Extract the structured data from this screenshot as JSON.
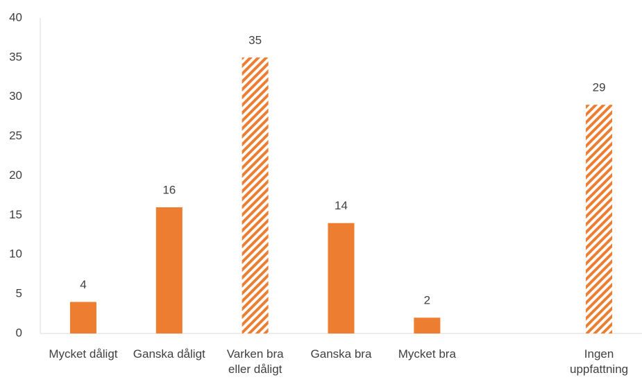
{
  "chart_data": {
    "type": "bar",
    "categories": [
      "Mycket dåligt",
      "Ganska dåligt",
      "Varken bra eller dåligt",
      "Ganska bra",
      "Mycket bra",
      null,
      "Ingen uppfattning"
    ],
    "values": [
      4,
      16,
      35,
      14,
      2,
      null,
      29
    ],
    "bar_styles": [
      "solid",
      "solid",
      "hatched",
      "solid",
      "solid",
      null,
      "hatched"
    ],
    "color": "#ed7d31",
    "ylim": [
      0,
      40
    ],
    "yticks": [
      0,
      5,
      10,
      15,
      20,
      25,
      30,
      35,
      40
    ],
    "grid": false,
    "data_labels": true
  }
}
